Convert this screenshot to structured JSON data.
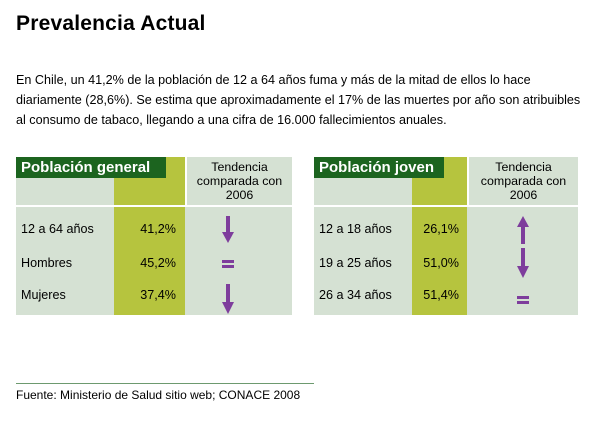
{
  "title": "Prevalencia Actual",
  "intro": "En Chile,  un 41,2% de la población de 12 a 64 años fuma y más de la mitad de ellos lo hace diariamente (28,6%). Se estima que aproximadamente el 17% de las muertes por año son atribuibles al consumo de tabaco, llegando a una cifra de 16.000 fallecimientos anuales.",
  "colors": {
    "header_green": "#1c641f",
    "value_column": "#b6c43e",
    "table_background": "#d5e1d3",
    "trend_icon": "#7e3d9c"
  },
  "tables": [
    {
      "header": "Población general",
      "trend_header": "Tendencia comparada con 2006",
      "rows": [
        {
          "label": "12 a 64 años",
          "value": "41,2%",
          "trend": "down"
        },
        {
          "label": "Hombres",
          "value": "45,2%",
          "trend": "equal"
        },
        {
          "label": "Mujeres",
          "value": "37,4%",
          "trend": "down"
        }
      ]
    },
    {
      "header": "Población joven",
      "trend_header": "Tendencia comparada con 2006",
      "rows": [
        {
          "label": "12 a 18 años",
          "value": "26,1%",
          "trend": "up"
        },
        {
          "label": "19 a 25 años",
          "value": "51,0%",
          "trend": "down"
        },
        {
          "label": "26 a 34 años",
          "value": "51,4%",
          "trend": "equal"
        }
      ]
    }
  ],
  "source": "Fuente: Ministerio de Salud sitio web; CONACE 2008"
}
